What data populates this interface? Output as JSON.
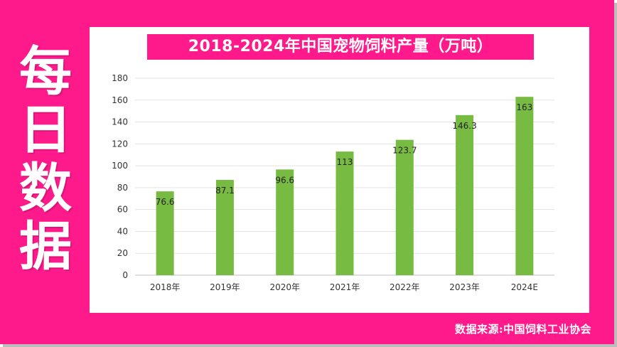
{
  "side_title": [
    "每",
    "日",
    "数",
    "据"
  ],
  "source": "数据来源:中国饲料工业协会",
  "colors": {
    "frame": "#ff1a8c",
    "bar": "#78bb43",
    "title_bg": "#ff1a8c"
  },
  "chart_data": {
    "type": "bar",
    "title": "2018-2024年中国宠物饲料产量（万吨）",
    "categories": [
      "2018年",
      "2019年",
      "2020年",
      "2021年",
      "2022年",
      "2023年",
      "2024E"
    ],
    "values": [
      76.6,
      87.1,
      96.6,
      113,
      123.7,
      146.3,
      163
    ],
    "value_labels": [
      "76.6",
      "87.1",
      "96.6",
      "113",
      "123.7",
      "146.3",
      "163"
    ],
    "ylim": [
      0,
      180
    ],
    "yticks": [
      0,
      20,
      40,
      60,
      80,
      100,
      120,
      140,
      160,
      180
    ],
    "grid": true,
    "legend": "none"
  }
}
